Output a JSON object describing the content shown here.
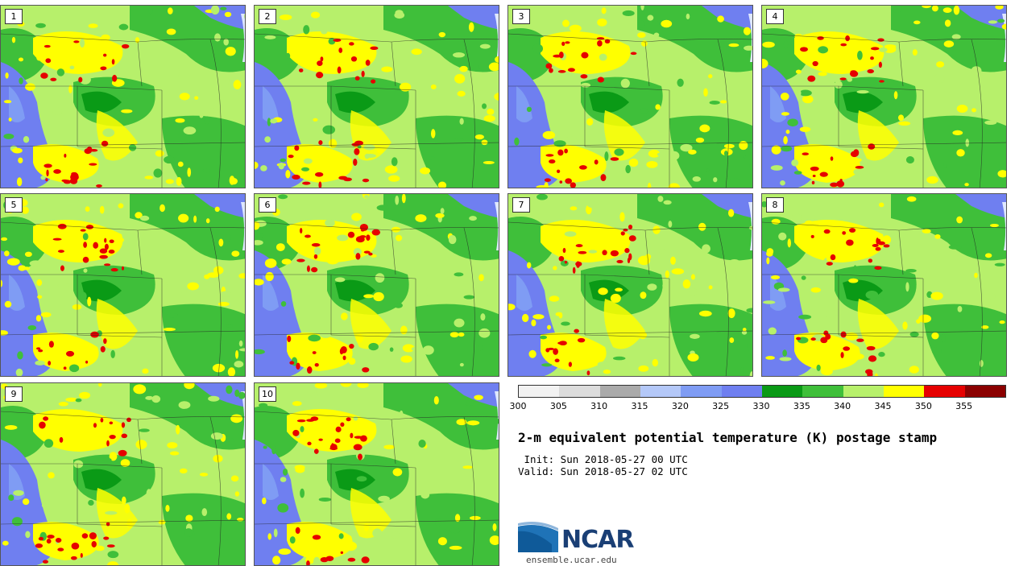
{
  "members": [
    {
      "label": "1"
    },
    {
      "label": "2"
    },
    {
      "label": "3"
    },
    {
      "label": "4"
    },
    {
      "label": "5"
    },
    {
      "label": "6"
    },
    {
      "label": "7"
    },
    {
      "label": "8"
    },
    {
      "label": "9"
    },
    {
      "label": "10"
    }
  ],
  "colorbar": {
    "colors": [
      "#f2f2f2",
      "#dcdcdc",
      "#aaaaaa",
      "#b4c8f8",
      "#7f9cf4",
      "#6f7ff0",
      "#0a9a16",
      "#3fbf3a",
      "#b7f06b",
      "#ffff00",
      "#e60000",
      "#8b0000"
    ],
    "ticks": [
      "300",
      "305",
      "310",
      "315",
      "320",
      "325",
      "330",
      "335",
      "340",
      "345",
      "350",
      "355"
    ],
    "min": 300,
    "max": 360
  },
  "title": "2-m equivalent potential temperature (K) postage stamp",
  "init": " Init: Sun 2018-05-27 00 UTC",
  "valid": "Valid: Sun 2018-05-27 02 UTC",
  "logo": {
    "text": "NCAR",
    "url": "ensemble.ucar.edu"
  }
}
